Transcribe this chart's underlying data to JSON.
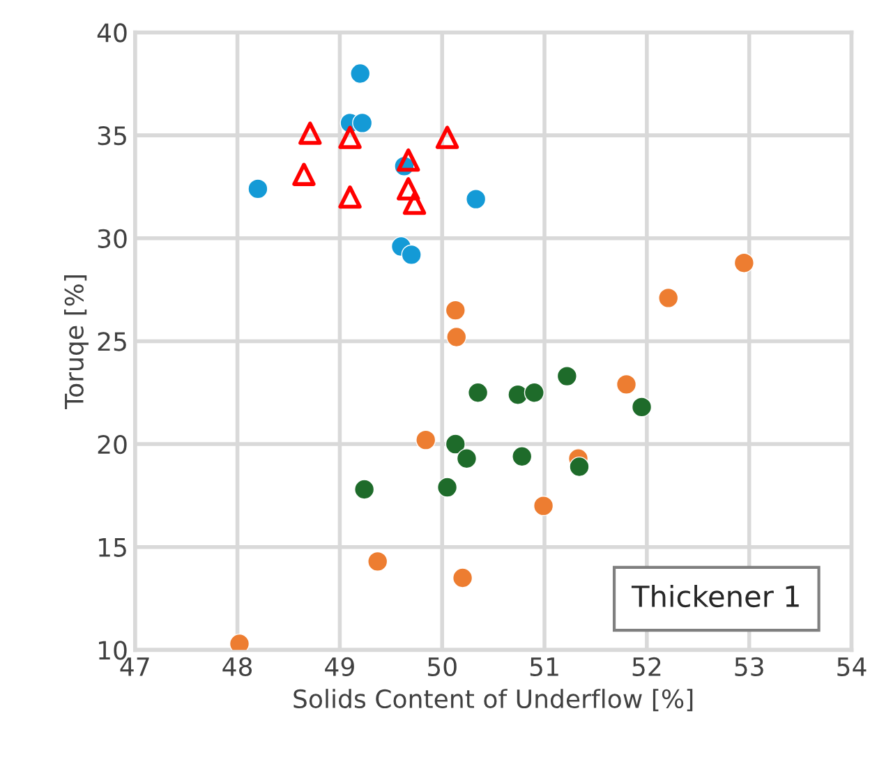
{
  "chart_data": {
    "type": "scatter",
    "xlabel": "Solids Content of Underflow [%]",
    "ylabel": "Toruqe [%]",
    "xlim": [
      47,
      54
    ],
    "xticks": [
      47,
      48,
      49,
      50,
      51,
      52,
      53,
      54
    ],
    "ylim": [
      10,
      40
    ],
    "yticks": [
      10,
      15,
      20,
      25,
      30,
      35,
      40
    ],
    "grid": true,
    "annotations": [
      "Thickener 1"
    ],
    "series": [
      {
        "color": "#149ad6",
        "marker": "circle",
        "x": [
          49.2,
          49.1,
          49.22,
          48.2,
          49.63,
          50.33,
          49.6,
          49.7
        ],
        "values": [
          38.0,
          35.6,
          35.6,
          32.4,
          33.5,
          31.9,
          29.6,
          29.2
        ]
      },
      {
        "color": "#ff0000",
        "marker": "triangle",
        "x": [
          48.71,
          49.1,
          50.05,
          49.67,
          48.65,
          49.1,
          49.67,
          49.73
        ],
        "values": [
          35.1,
          34.9,
          34.9,
          33.8,
          33.1,
          32.0,
          32.4,
          31.7
        ]
      },
      {
        "color": "#ed7d31",
        "marker": "circle",
        "x": [
          50.13,
          50.14,
          49.84,
          49.37,
          50.2,
          48.02,
          52.95,
          52.21,
          51.8,
          51.33,
          50.99
        ],
        "values": [
          26.5,
          25.2,
          20.2,
          14.3,
          13.5,
          10.3,
          28.8,
          27.1,
          22.9,
          19.3,
          17.0
        ]
      },
      {
        "color": "#1e6b2a",
        "marker": "circle",
        "x": [
          50.35,
          50.74,
          50.9,
          51.22,
          51.95,
          50.13,
          50.24,
          50.78,
          51.34,
          50.05,
          49.24
        ],
        "values": [
          22.5,
          22.4,
          22.5,
          23.3,
          21.8,
          20.0,
          19.3,
          19.4,
          18.9,
          17.9,
          17.8
        ]
      }
    ]
  }
}
